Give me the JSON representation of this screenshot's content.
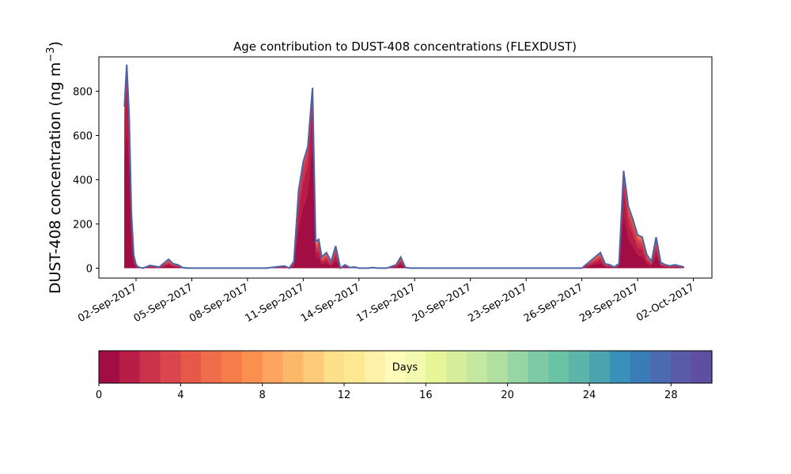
{
  "chart_data": {
    "type": "area",
    "title": "Age contribution to DUST-408 concentrations (FLEXDUST)",
    "ylabel_main": "DUST-408 concentration (ng m",
    "ylabel_sup": "−3",
    "ylabel_close": ")",
    "xlabel": "",
    "ylim": [
      -45,
      955
    ],
    "yticks": [
      0,
      200,
      400,
      600,
      800
    ],
    "xlim": [
      "2017-08-31T00:00",
      "2017-10-03T00:00"
    ],
    "xticks": [
      "2017-09-02",
      "2017-09-05",
      "2017-09-08",
      "2017-09-11",
      "2017-09-14",
      "2017-09-17",
      "2017-09-20",
      "2017-09-23",
      "2017-09-26",
      "2017-09-29",
      "2017-10-02"
    ],
    "xtick_labels": [
      "02-Sep-2017",
      "05-Sep-2017",
      "08-Sep-2017",
      "11-Sep-2017",
      "14-Sep-2017",
      "17-Sep-2017",
      "20-Sep-2017",
      "23-Sep-2017",
      "26-Sep-2017",
      "29-Sep-2017",
      "02-Oct-2017"
    ],
    "grid": false,
    "total_line_color": "#4a62a6",
    "series_total": {
      "x": [
        "2017-09-01T09:00",
        "2017-09-01T12:00",
        "2017-09-01T15:00",
        "2017-09-01T18:00",
        "2017-09-01T21:00",
        "2017-09-02T00:00",
        "2017-09-02T03:00",
        "2017-09-02T06:00",
        "2017-09-02T09:00",
        "2017-09-02T18:00",
        "2017-09-03T06:00",
        "2017-09-03T18:00",
        "2017-09-04T00:00",
        "2017-09-04T06:00",
        "2017-09-04T12:00",
        "2017-09-04T18:00",
        "2017-09-05T00:00",
        "2017-09-05T06:00",
        "2017-09-05T12:00",
        "2017-09-06T00:00",
        "2017-09-07T00:00",
        "2017-09-08T00:00",
        "2017-09-09T00:00",
        "2017-09-10T00:00",
        "2017-09-10T06:00",
        "2017-09-10T12:00",
        "2017-09-10T18:00",
        "2017-09-11T00:00",
        "2017-09-11T06:00",
        "2017-09-11T12:00",
        "2017-09-11T16:00",
        "2017-09-11T20:00",
        "2017-09-12T00:00",
        "2017-09-12T06:00",
        "2017-09-12T12:00",
        "2017-09-12T18:00",
        "2017-09-13T00:00",
        "2017-09-13T06:00",
        "2017-09-13T12:00",
        "2017-09-13T18:00",
        "2017-09-14T00:00",
        "2017-09-14T06:00",
        "2017-09-14T12:00",
        "2017-09-14T18:00",
        "2017-09-15T00:00",
        "2017-09-15T12:00",
        "2017-09-16T00:00",
        "2017-09-16T06:00",
        "2017-09-16T12:00",
        "2017-09-16T18:00",
        "2017-09-17T00:00",
        "2017-09-18T00:00",
        "2017-09-20T00:00",
        "2017-09-22T00:00",
        "2017-09-24T00:00",
        "2017-09-26T00:00",
        "2017-09-27T00:00",
        "2017-09-27T06:00",
        "2017-09-27T12:00",
        "2017-09-27T18:00",
        "2017-09-28T00:00",
        "2017-09-28T06:00",
        "2017-09-28T12:00",
        "2017-09-28T18:00",
        "2017-09-29T00:00",
        "2017-09-29T06:00",
        "2017-09-29T12:00",
        "2017-09-29T18:00",
        "2017-09-30T00:00",
        "2017-09-30T06:00",
        "2017-09-30T12:00",
        "2017-09-30T18:00",
        "2017-10-01T00:00",
        "2017-10-01T06:00",
        "2017-10-01T12:00"
      ],
      "values": [
        730,
        920,
        700,
        250,
        60,
        15,
        5,
        2,
        0,
        12,
        5,
        40,
        20,
        15,
        3,
        0,
        0,
        0,
        0,
        0,
        0,
        0,
        0,
        10,
        0,
        30,
        350,
        480,
        550,
        815,
        120,
        130,
        50,
        70,
        30,
        100,
        0,
        15,
        3,
        5,
        0,
        0,
        0,
        3,
        0,
        0,
        15,
        50,
        3,
        0,
        0,
        0,
        0,
        0,
        0,
        0,
        70,
        20,
        15,
        5,
        20,
        440,
        280,
        220,
        150,
        140,
        60,
        30,
        140,
        25,
        15,
        10,
        15,
        10,
        5
      ]
    },
    "colorbar": {
      "label": "Days",
      "min": 0,
      "max": 30,
      "ticks": [
        0,
        4,
        8,
        12,
        16,
        20,
        24,
        28
      ],
      "colors": [
        "#a20d44",
        "#b81d48",
        "#cb334c",
        "#da464d",
        "#e65848",
        "#f06d4b",
        "#f67c4a",
        "#f9904f",
        "#fca460",
        "#fdb768",
        "#fecb7a",
        "#fee08b",
        "#fee891",
        "#fff1a8",
        "#fffbb8",
        "#f3f9ae",
        "#e6f598",
        "#d6ee9b",
        "#c5e8a0",
        "#b0df9f",
        "#97d5a4",
        "#7fcaa6",
        "#6bc3a6",
        "#5cb4aa",
        "#4ba3b0",
        "#3990b9",
        "#3a7cb8",
        "#4c6aaf",
        "#5a5aa8",
        "#5e4fa2"
      ]
    }
  }
}
